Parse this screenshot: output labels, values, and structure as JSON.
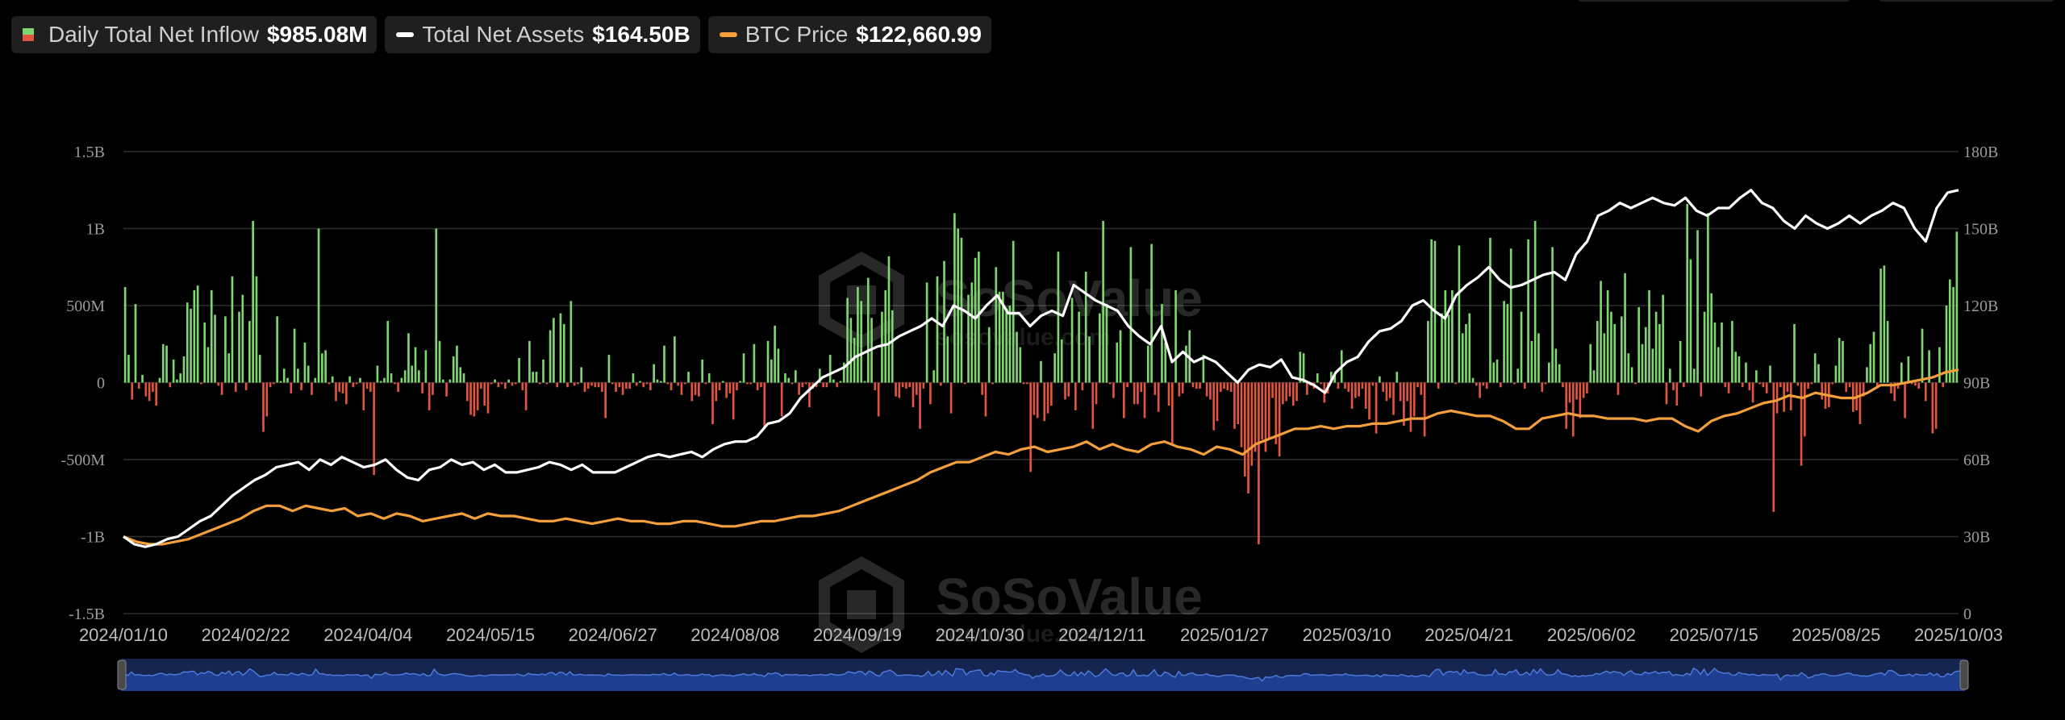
{
  "legend": {
    "inflow": {
      "label": "Daily Total Net Inflow",
      "value": "$985.08M"
    },
    "assets": {
      "label": "Total Net Assets",
      "value": "$164.50B"
    },
    "price": {
      "label": "BTC Price",
      "value": "$122,660.99"
    }
  },
  "colors": {
    "positive": "#7ed66f",
    "negative": "#e0553f",
    "assets_line": "#ffffff",
    "price_line": "#f3a03c",
    "grid": "#2e2e2e",
    "navigator": "#1e3f8f"
  },
  "watermark": {
    "brand": "SoSoValue",
    "site": "sosovalue.com"
  },
  "chart_data": {
    "type": "bar",
    "title": "",
    "left_axis": {
      "label": "",
      "range": [
        -1500000000,
        1500000000
      ],
      "ticks": [
        "1.5B",
        "1B",
        "500M",
        "0",
        "-500M",
        "-1B",
        "-1.5B"
      ]
    },
    "right_axis": {
      "label": "",
      "range": [
        0,
        180000000000
      ],
      "ticks": [
        "180B",
        "150B",
        "120B",
        "90B",
        "60B",
        "30B",
        "0"
      ]
    },
    "x_ticks": [
      "2024/01/10",
      "2024/02/22",
      "2024/04/04",
      "2024/05/15",
      "2024/06/27",
      "2024/08/08",
      "2024/09/19",
      "2024/10/30",
      "2024/12/11",
      "2025/01/27",
      "2025/03/10",
      "2025/04/21",
      "2025/06/02",
      "2025/07/15",
      "2025/08/25",
      "2025/10/03"
    ],
    "grid": true,
    "legend_position": "top-left",
    "series": [
      {
        "name": "Daily Total Net Inflow",
        "axis": "left",
        "type": "bar",
        "unit": "M",
        "values": [
          620,
          180,
          -110,
          510,
          -40,
          50,
          -90,
          -120,
          -60,
          -150,
          30,
          250,
          240,
          -30,
          150,
          20,
          60,
          170,
          520,
          480,
          600,
          630,
          -10,
          390,
          230,
          600,
          440,
          -20,
          -80,
          430,
          190,
          690,
          -60,
          460,
          570,
          -50,
          400,
          1050,
          690,
          180,
          -320,
          -220,
          -30,
          -10,
          430,
          10,
          90,
          30,
          -70,
          350,
          90,
          -50,
          260,
          110,
          -80,
          30,
          1000,
          190,
          210,
          -10,
          40,
          -120,
          -60,
          -70,
          -140,
          40,
          -30,
          -10,
          30,
          -180,
          -40,
          -60,
          -600,
          110,
          10,
          30,
          400,
          60,
          -10,
          -60,
          30,
          80,
          320,
          110,
          230,
          80,
          -70,
          210,
          -180,
          -80,
          1000,
          270,
          20,
          -90,
          20,
          170,
          240,
          100,
          60,
          -120,
          -210,
          -220,
          -180,
          -40,
          -150,
          -200,
          -10,
          20,
          -30,
          -10,
          -40,
          20,
          -20,
          -10,
          160,
          -50,
          -180,
          270,
          70,
          70,
          -10,
          150,
          -10,
          340,
          420,
          -30,
          450,
          380,
          -30,
          530,
          -20,
          -10,
          100,
          -60,
          -40,
          -20,
          -30,
          -30,
          -60,
          -230,
          180,
          -10,
          -60,
          -30,
          -80,
          -40,
          -40,
          60,
          -20,
          10,
          -30,
          -10,
          -50,
          120,
          20,
          10,
          240,
          -10,
          -50,
          300,
          -20,
          -80,
          -10,
          70,
          -120,
          -80,
          -90,
          150,
          -10,
          60,
          -270,
          -120,
          -50,
          10,
          -100,
          -70,
          -240,
          -50,
          10,
          190,
          -10,
          -10,
          250,
          -50,
          -30,
          -300,
          270,
          150,
          370,
          220,
          -220,
          60,
          30,
          -10,
          80,
          -80,
          -30,
          -10,
          -160,
          -40,
          -30,
          90,
          -30,
          -30,
          180,
          20,
          -30,
          10,
          130,
          550,
          420,
          290,
          620,
          530,
          10,
          680,
          420,
          -50,
          -220,
          460,
          600,
          820,
          470,
          -90,
          -100,
          -30,
          -40,
          -30,
          -160,
          -80,
          -300,
          -40,
          650,
          -140,
          80,
          690,
          -20,
          790,
          300,
          -200,
          1100,
          1000,
          940,
          -10,
          570,
          650,
          810,
          850,
          -80,
          -220,
          360,
          -10,
          750,
          590,
          590,
          480,
          500,
          920,
          330,
          230,
          -10,
          -10,
          -580,
          -210,
          -230,
          140,
          -250,
          -200,
          -150,
          190,
          850,
          280,
          -110,
          -90,
          550,
          -180,
          460,
          -50,
          720,
          300,
          -300,
          -140,
          450,
          1050,
          510,
          -10,
          -100,
          260,
          340,
          -230,
          -30,
          880,
          -140,
          -140,
          -60,
          -230,
          240,
          900,
          -80,
          -190,
          510,
          260,
          -150,
          -400,
          600,
          -90,
          -70,
          240,
          340,
          -30,
          -40,
          -40,
          180,
          -90,
          -110,
          -310,
          -250,
          -60,
          -40,
          -50,
          -60,
          -300,
          -270,
          -420,
          -610,
          -720,
          -540,
          -450,
          -1050,
          -370,
          -450,
          -370,
          -100,
          -400,
          -480,
          -140,
          -120,
          -90,
          -150,
          -120,
          200,
          190,
          -80,
          -20,
          -40,
          60,
          -10,
          -130,
          -70,
          70,
          60,
          -40,
          210,
          -40,
          -60,
          -170,
          -100,
          -90,
          -40,
          -170,
          -240,
          -20,
          -330,
          40,
          -60,
          -120,
          -100,
          -210,
          70,
          -120,
          -280,
          -120,
          -320,
          -220,
          -30,
          -80,
          -350,
          400,
          930,
          920,
          -40,
          450,
          600,
          440,
          600,
          -10,
          890,
          320,
          380,
          450,
          30,
          -20,
          -100,
          -20,
          -40,
          940,
          130,
          150,
          -30,
          530,
          510,
          870,
          -10,
          90,
          460,
          -40,
          930,
          270,
          1050,
          320,
          -60,
          -10,
          130,
          880,
          220,
          120,
          -30,
          -300,
          -130,
          -350,
          -110,
          -230,
          -100,
          -70,
          250,
          80,
          400,
          660,
          320,
          600,
          460,
          380,
          -80,
          430,
          710,
          190,
          100,
          -10,
          490,
          250,
          360,
          600,
          220,
          460,
          380,
          570,
          -140,
          90,
          -50,
          -150,
          270,
          -30,
          1160,
          800,
          90,
          990,
          -90,
          460,
          1100,
          580,
          390,
          230,
          390,
          -30,
          -70,
          400,
          200,
          170,
          -30,
          130,
          -50,
          -130,
          80,
          -10,
          -30,
          -70,
          110,
          -840,
          -200,
          -30,
          -190,
          -60,
          -180,
          380,
          -20,
          -540,
          -350,
          -40,
          -10,
          190,
          120,
          -110,
          -170,
          -160,
          -10,
          110,
          290,
          270,
          -60,
          -30,
          -190,
          -180,
          -270,
          -90,
          100,
          250,
          330,
          -30,
          740,
          760,
          400,
          -70,
          -120,
          -40,
          130,
          -230,
          170,
          -10,
          -20,
          -40,
          350,
          -120,
          210,
          -330,
          -300,
          230,
          -30,
          500,
          670,
          620,
          980
        ]
      },
      {
        "name": "Total Net Assets",
        "axis": "right",
        "type": "line",
        "unit": "B",
        "values": [
          30,
          27,
          26,
          27,
          29,
          30,
          33,
          36,
          38,
          42,
          46,
          49,
          52,
          54,
          57,
          58,
          59,
          56,
          60,
          58,
          61,
          59,
          57,
          58,
          60,
          56,
          53,
          52,
          56,
          57,
          60,
          58,
          59,
          56,
          58,
          55,
          55,
          56,
          57,
          59,
          58,
          56,
          58,
          55,
          55,
          55,
          57,
          59,
          61,
          62,
          61,
          62,
          63,
          61,
          64,
          66,
          67,
          67,
          69,
          74,
          75,
          78,
          84,
          88,
          92,
          94,
          96,
          100,
          102,
          104,
          105,
          108,
          110,
          112,
          115,
          112,
          120,
          118,
          115,
          120,
          124,
          117,
          117,
          112,
          116,
          118,
          116,
          128,
          125,
          122,
          120,
          118,
          112,
          108,
          105,
          112,
          98,
          102,
          98,
          100,
          98,
          94,
          90,
          95,
          97,
          96,
          99,
          92,
          91,
          89,
          86,
          94,
          98,
          100,
          106,
          110,
          111,
          114,
          120,
          122,
          118,
          115,
          124,
          128,
          131,
          135,
          130,
          127,
          128,
          130,
          132,
          133,
          130,
          140,
          145,
          155,
          157,
          160,
          158,
          160,
          162,
          160,
          159,
          162,
          157,
          155,
          158,
          158,
          162,
          165,
          160,
          158,
          153,
          150,
          155,
          152,
          150,
          152,
          155,
          152,
          155,
          157,
          160,
          158,
          150,
          145,
          158,
          164,
          165
        ]
      },
      {
        "name": "BTC Price",
        "axis": "right",
        "type": "line",
        "unit": "USD thousands (right-axis units)",
        "values": [
          30,
          28,
          27,
          27,
          28,
          29,
          31,
          33,
          35,
          37,
          40,
          42,
          42,
          40,
          42,
          41,
          40,
          41,
          38,
          39,
          37,
          39,
          38,
          36,
          37,
          38,
          39,
          37,
          39,
          38,
          38,
          37,
          36,
          36,
          37,
          36,
          35,
          36,
          37,
          36,
          36,
          35,
          35,
          36,
          36,
          35,
          34,
          34,
          35,
          36,
          36,
          37,
          38,
          38,
          39,
          40,
          42,
          44,
          46,
          48,
          50,
          52,
          55,
          57,
          59,
          59,
          61,
          63,
          62,
          64,
          65,
          63,
          64,
          65,
          67,
          64,
          66,
          64,
          63,
          66,
          67,
          65,
          64,
          62,
          65,
          64,
          62,
          66,
          68,
          70,
          72,
          72,
          73,
          72,
          73,
          73,
          74,
          74,
          75,
          76,
          76,
          78,
          79,
          78,
          77,
          77,
          75,
          72,
          72,
          76,
          77,
          78,
          77,
          77,
          76,
          76,
          76,
          75,
          76,
          76,
          73,
          71,
          75,
          77,
          78,
          80,
          82,
          83,
          85,
          84,
          86,
          85,
          84,
          84,
          86,
          89,
          89,
          90,
          91,
          92,
          94,
          95
        ]
      }
    ]
  }
}
